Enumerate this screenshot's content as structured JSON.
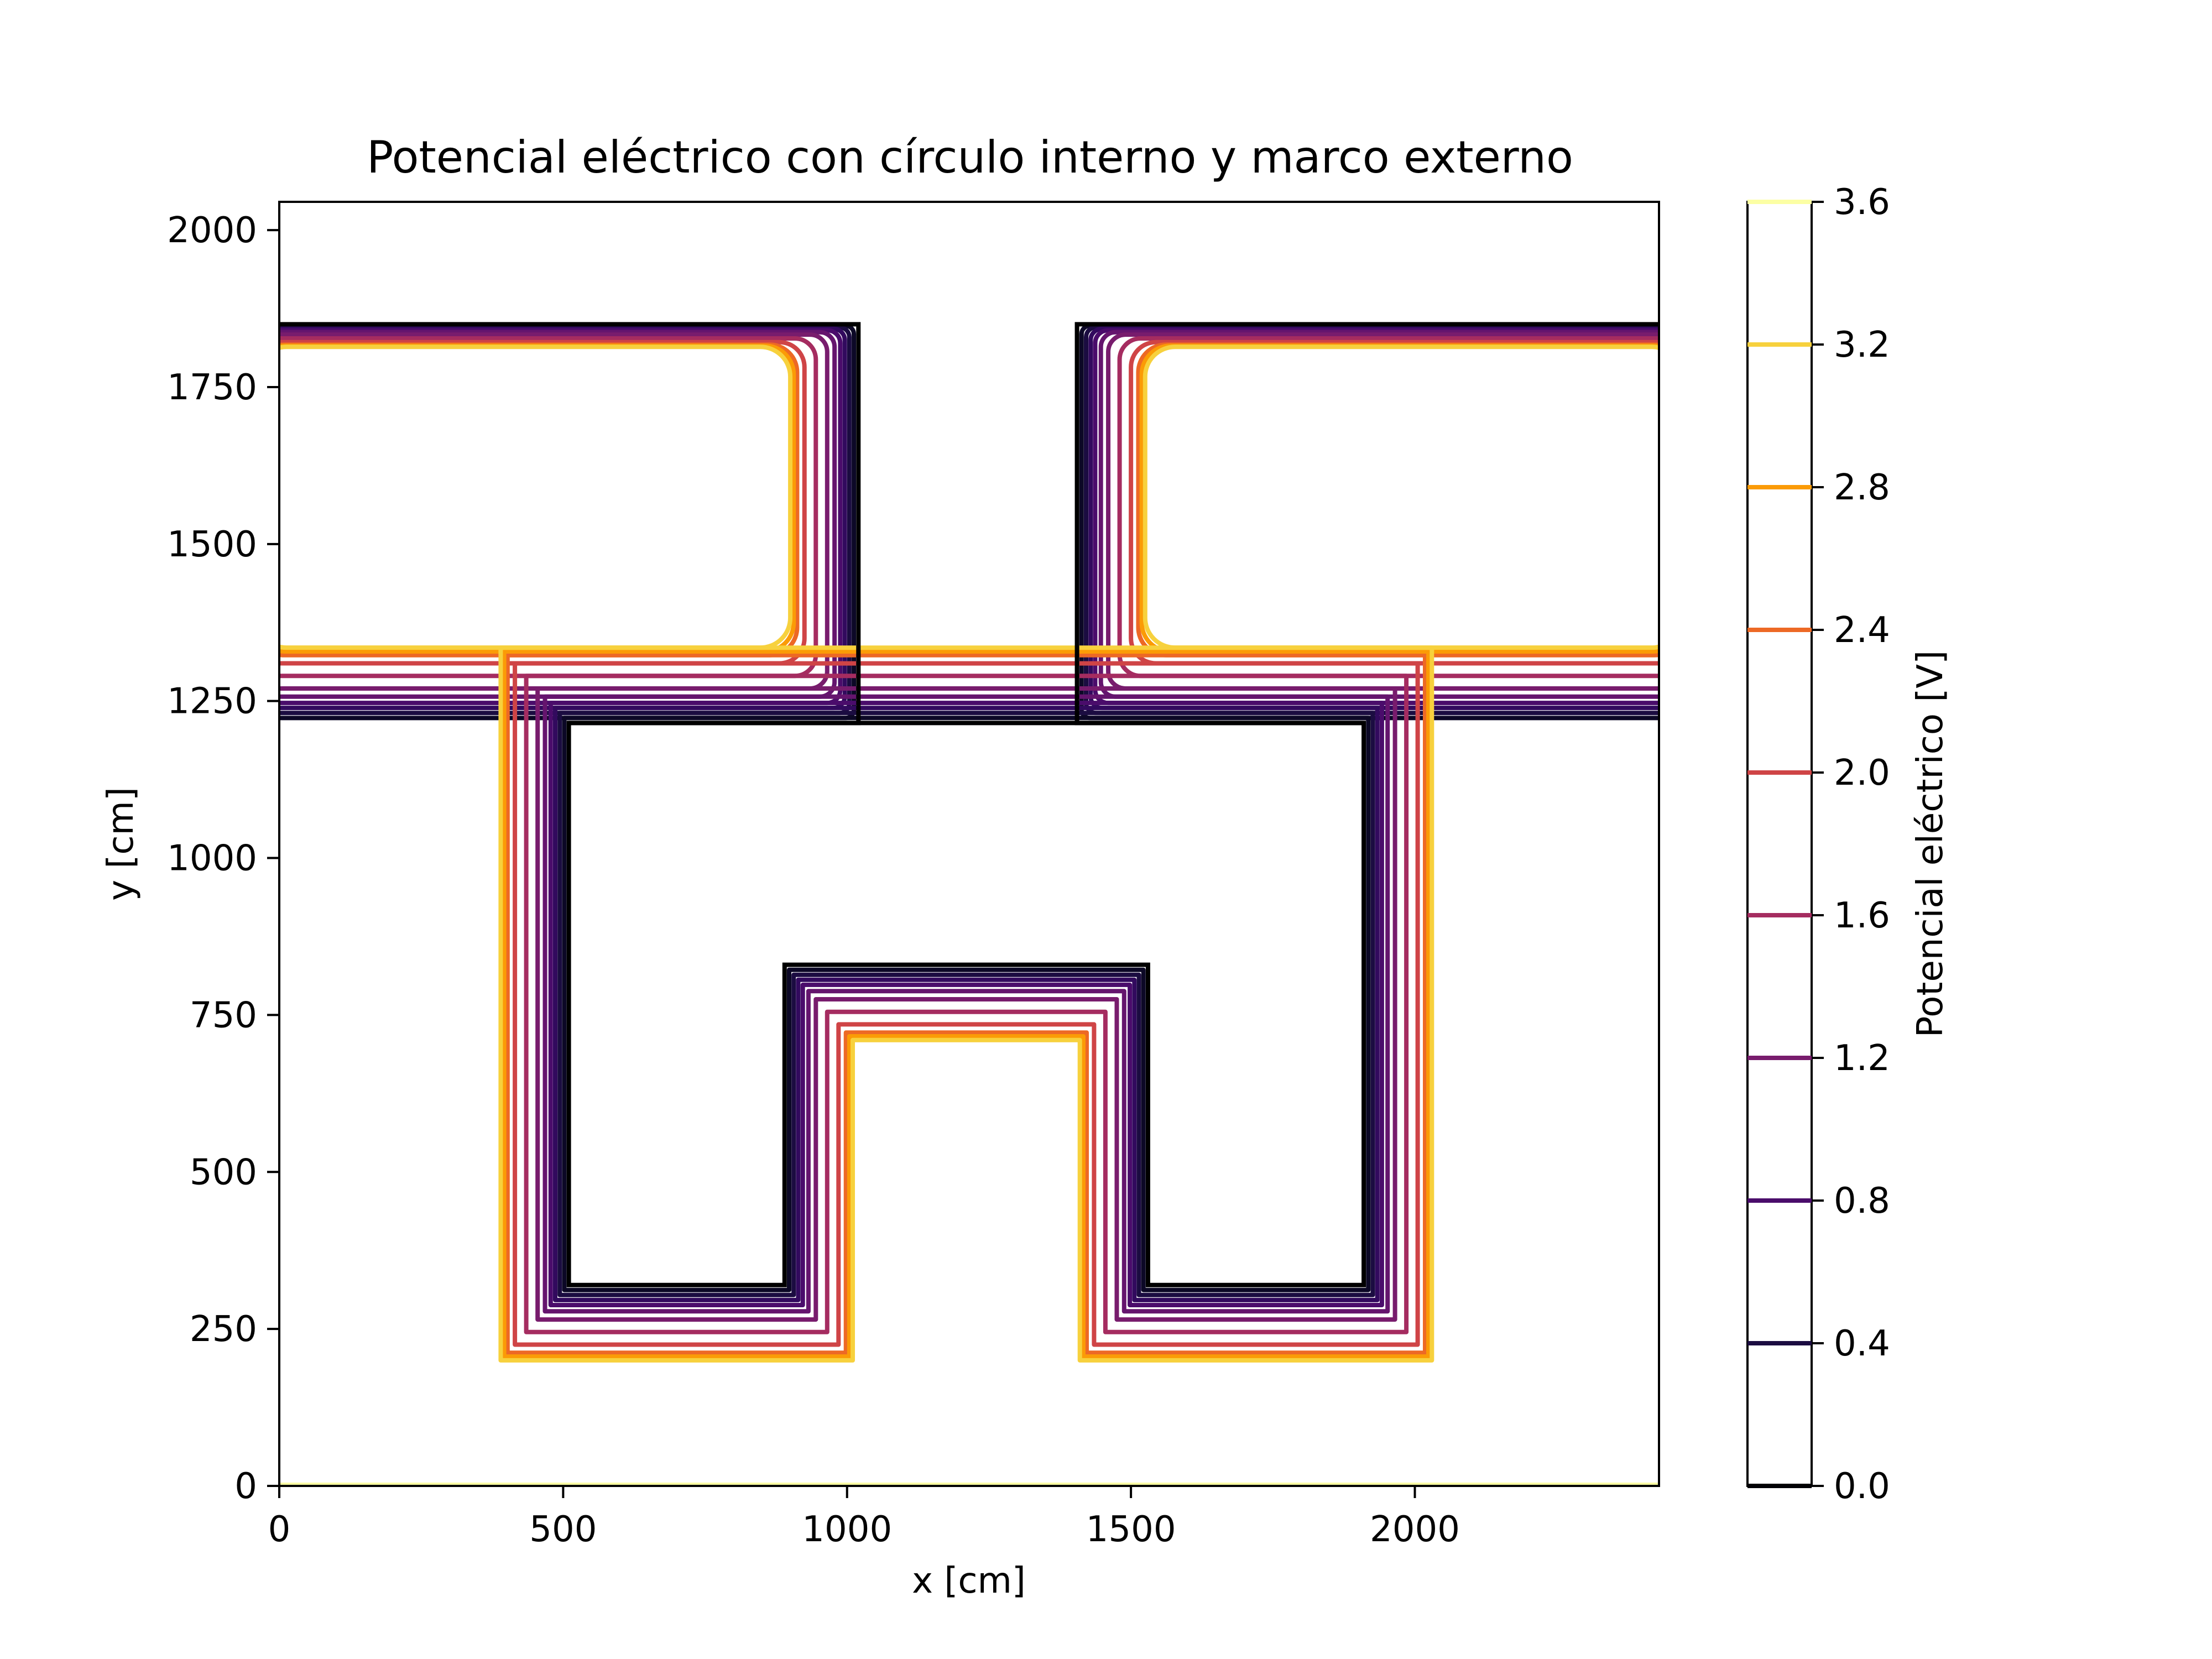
{
  "chart_data": {
    "type": "contour",
    "title": "Potencial eléctrico con círculo interno y marco externo",
    "xlabel": "x [cm]",
    "ylabel": "y [cm]",
    "xlim": [
      0,
      2430
    ],
    "ylim": [
      0,
      2045
    ],
    "xticks": [
      "0",
      "500",
      "1000",
      "1500",
      "2000"
    ],
    "xtick_values": [
      0,
      500,
      1000,
      1500,
      2000
    ],
    "yticks": [
      "0",
      "250",
      "500",
      "750",
      "1000",
      "1250",
      "1500",
      "1750",
      "2000"
    ],
    "ytick_values": [
      0,
      250,
      500,
      750,
      1000,
      1250,
      1500,
      1750,
      2000
    ],
    "colorbar": {
      "label": "Potencial eléctrico [V]",
      "ticks": [
        "0.0",
        "0.4",
        "0.8",
        "1.2",
        "1.6",
        "2.0",
        "2.4",
        "2.8",
        "3.2",
        "3.6"
      ],
      "tick_values": [
        0.0,
        0.4,
        0.8,
        1.2,
        1.6,
        2.0,
        2.4,
        2.8,
        3.2,
        3.6
      ],
      "range": [
        0.0,
        3.6
      ]
    },
    "conductor_top_left": [
      [
        0,
        1850
      ],
      [
        1020,
        1850
      ],
      [
        1020,
        1215
      ],
      [
        0,
        1215
      ]
    ],
    "conductor_top_right": [
      [
        1405,
        1850
      ],
      [
        2430,
        1850
      ],
      [
        2430,
        1215
      ],
      [
        1405,
        1215
      ]
    ],
    "conductor_h": [
      [
        510,
        1215
      ],
      [
        1910,
        1215
      ],
      [
        1910,
        320
      ],
      [
        1530,
        320
      ],
      [
        1530,
        830
      ],
      [
        890,
        830
      ],
      [
        890,
        320
      ],
      [
        510,
        320
      ]
    ],
    "levels": [
      {
        "value": 0.1,
        "color": "#0c0826",
        "offset": 8
      },
      {
        "value": 0.2,
        "color": "#1b0c41",
        "offset": 16
      },
      {
        "value": 0.4,
        "color": "#320a5e",
        "offset": 24
      },
      {
        "value": 0.6,
        "color": "#4a0c6b",
        "offset": 32
      },
      {
        "value": 0.9,
        "color": "#65156e",
        "offset": 42
      },
      {
        "value": 1.2,
        "color": "#781c6d",
        "offset": 55
      },
      {
        "value": 1.6,
        "color": "#a52c60",
        "offset": 75
      },
      {
        "value": 2.0,
        "color": "#cf4446",
        "offset": 95
      },
      {
        "value": 2.4,
        "color": "#ed6925",
        "offset": 108
      },
      {
        "value": 2.8,
        "color": "#fb9b06",
        "offset": 114
      },
      {
        "value": 3.2,
        "color": "#f7d13d",
        "offset": 120
      }
    ],
    "boundary_line_color": "#fcffa4"
  }
}
